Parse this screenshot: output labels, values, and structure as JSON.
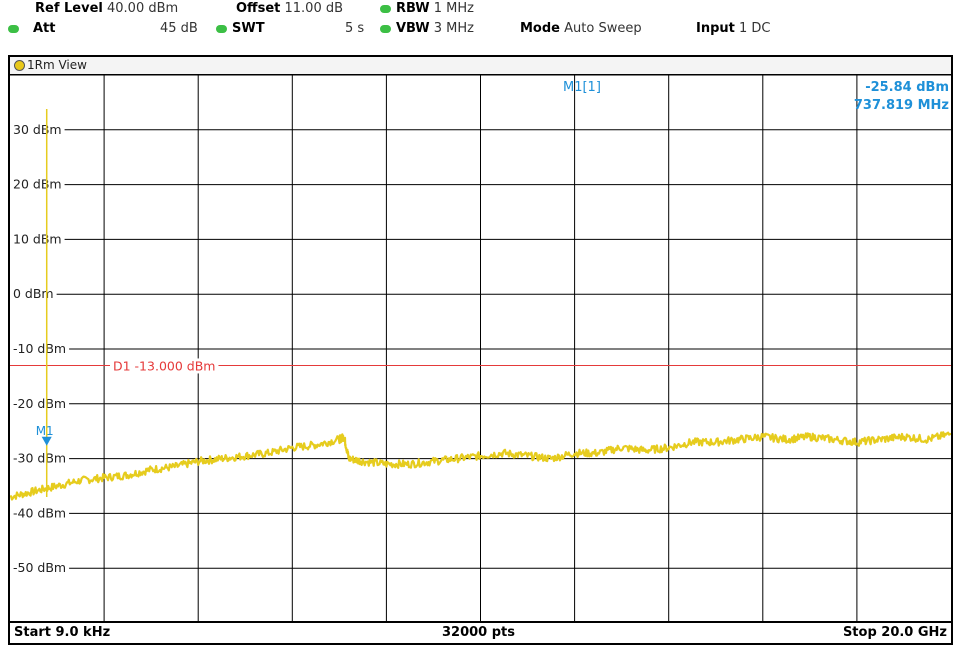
{
  "header": {
    "ref_level_label": "Ref Level",
    "ref_level_value": "40.00 dBm",
    "offset_label": "Offset",
    "offset_value": "11.00 dB",
    "rbw_label": "RBW",
    "rbw_value": "1 MHz",
    "att_label": "Att",
    "att_value": "45 dB",
    "swt_label": "SWT",
    "swt_value": "5 s",
    "vbw_label": "VBW",
    "vbw_value": "3 MHz",
    "mode_label": "Mode",
    "mode_value": "Auto Sweep",
    "input_label": "Input",
    "input_value": "1 DC"
  },
  "view": {
    "tab_label": "1Rm View"
  },
  "marker": {
    "label": "M1[1]",
    "level": "-25.84 dBm",
    "frequency": "737.819 MHz",
    "tag": "M1"
  },
  "display_line": {
    "label": "D1  -13.000 dBm"
  },
  "footer": {
    "start": "Start 9.0 kHz",
    "points": "32000 pts",
    "stop": "Stop 20.0 GHz"
  },
  "colors": {
    "trace": "#e6cc1e",
    "display_line": "#e53a3a",
    "marker": "#1e90d8",
    "grid": "#000000",
    "status_led": "#3cbf45"
  },
  "chart_data": {
    "type": "line",
    "x_unit": "GHz",
    "y_unit": "dBm",
    "xlim": [
      9e-06,
      20.0
    ],
    "ylim": [
      -60,
      40
    ],
    "y_tick_labels": [
      "30 dBm",
      "20 dBm",
      "10 dBm",
      "0 dBm",
      "-10 dBm",
      "-20 dBm",
      "-30 dBm",
      "-40 dBm",
      "-50 dBm"
    ],
    "y_ticks": [
      30,
      20,
      10,
      0,
      -10,
      -20,
      -30,
      -40,
      -50
    ],
    "display_line_dbm": -13.0,
    "marker": {
      "x": 0.737819,
      "y": -25.84
    },
    "grid": true,
    "series": [
      {
        "x": [
          0.0,
          0.5,
          1.0,
          1.5,
          2.0,
          2.5,
          3.0,
          3.5,
          4.0,
          4.5,
          5.0,
          5.5,
          6.0,
          6.5,
          7.0,
          7.1,
          7.2,
          7.5,
          8.0,
          8.5,
          9.0,
          9.5,
          10.0,
          10.5,
          11.0,
          11.5,
          12.0,
          12.5,
          13.0,
          13.5,
          14.0,
          14.5,
          15.0,
          15.5,
          16.0,
          16.5,
          17.0,
          17.5,
          18.0,
          18.5,
          19.0,
          19.5,
          20.0
        ],
        "y": [
          -37.0,
          -36.0,
          -35.0,
          -34.0,
          -33.5,
          -33.0,
          -32.0,
          -31.5,
          -30.5,
          -30.0,
          -29.5,
          -29.0,
          -28.0,
          -27.5,
          -26.5,
          -26.0,
          -30.0,
          -30.5,
          -31.0,
          -31.0,
          -30.5,
          -30.0,
          -29.5,
          -29.0,
          -29.5,
          -30.0,
          -29.0,
          -29.0,
          -28.0,
          -28.5,
          -28.0,
          -27.0,
          -27.0,
          -26.5,
          -26.0,
          -26.5,
          -26.0,
          -26.5,
          -27.0,
          -26.5,
          -26.0,
          -26.5,
          -25.5
        ]
      }
    ]
  }
}
